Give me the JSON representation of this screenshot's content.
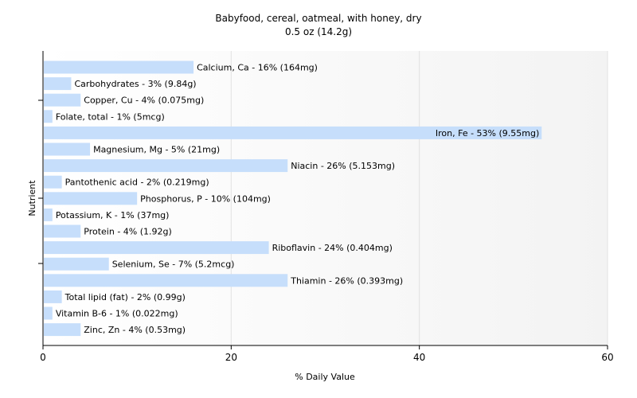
{
  "chart_data": {
    "type": "bar",
    "orientation": "horizontal",
    "title": "Babyfood, cereal, oatmeal, with honey, dry",
    "subtitle": "0.5 oz (14.2g)",
    "xlabel": "% Daily Value",
    "ylabel": "Nutrient",
    "xlim": [
      0,
      60
    ],
    "xticks": [
      0,
      20,
      40,
      60
    ],
    "grid": true,
    "bar_color": "#c6defb",
    "plot_background": [
      "#ffffff",
      "#f3f3f3"
    ],
    "categories": [
      "Calcium, Ca",
      "Carbohydrates",
      "Copper, Cu",
      "Folate, total",
      "Iron, Fe",
      "Magnesium, Mg",
      "Niacin",
      "Pantothenic acid",
      "Phosphorus, P",
      "Potassium, K",
      "Protein",
      "Riboflavin",
      "Selenium, Se",
      "Thiamin",
      "Total lipid (fat)",
      "Vitamin B-6",
      "Zinc, Zn"
    ],
    "values": [
      16,
      3,
      4,
      1,
      53,
      5,
      26,
      2,
      10,
      1,
      4,
      24,
      7,
      26,
      2,
      1,
      4
    ],
    "labels": [
      "Calcium, Ca - 16% (164mg)",
      "Carbohydrates - 3% (9.84g)",
      "Copper, Cu - 4% (0.075mg)",
      "Folate, total - 1% (5mcg)",
      "Iron, Fe - 53% (9.55mg)",
      "Magnesium, Mg - 5% (21mg)",
      "Niacin - 26% (5.153mg)",
      "Pantothenic acid - 2% (0.219mg)",
      "Phosphorus, P - 10% (104mg)",
      "Potassium, K - 1% (37mg)",
      "Protein - 4% (1.92g)",
      "Riboflavin - 24% (0.404mg)",
      "Selenium, Se - 7% (5.2mcg)",
      "Thiamin - 26% (0.393mg)",
      "Total lipid (fat) - 2% (0.99g)",
      "Vitamin B-6 - 1% (0.022mg)",
      "Zinc, Zn - 4% (0.53mg)"
    ]
  }
}
